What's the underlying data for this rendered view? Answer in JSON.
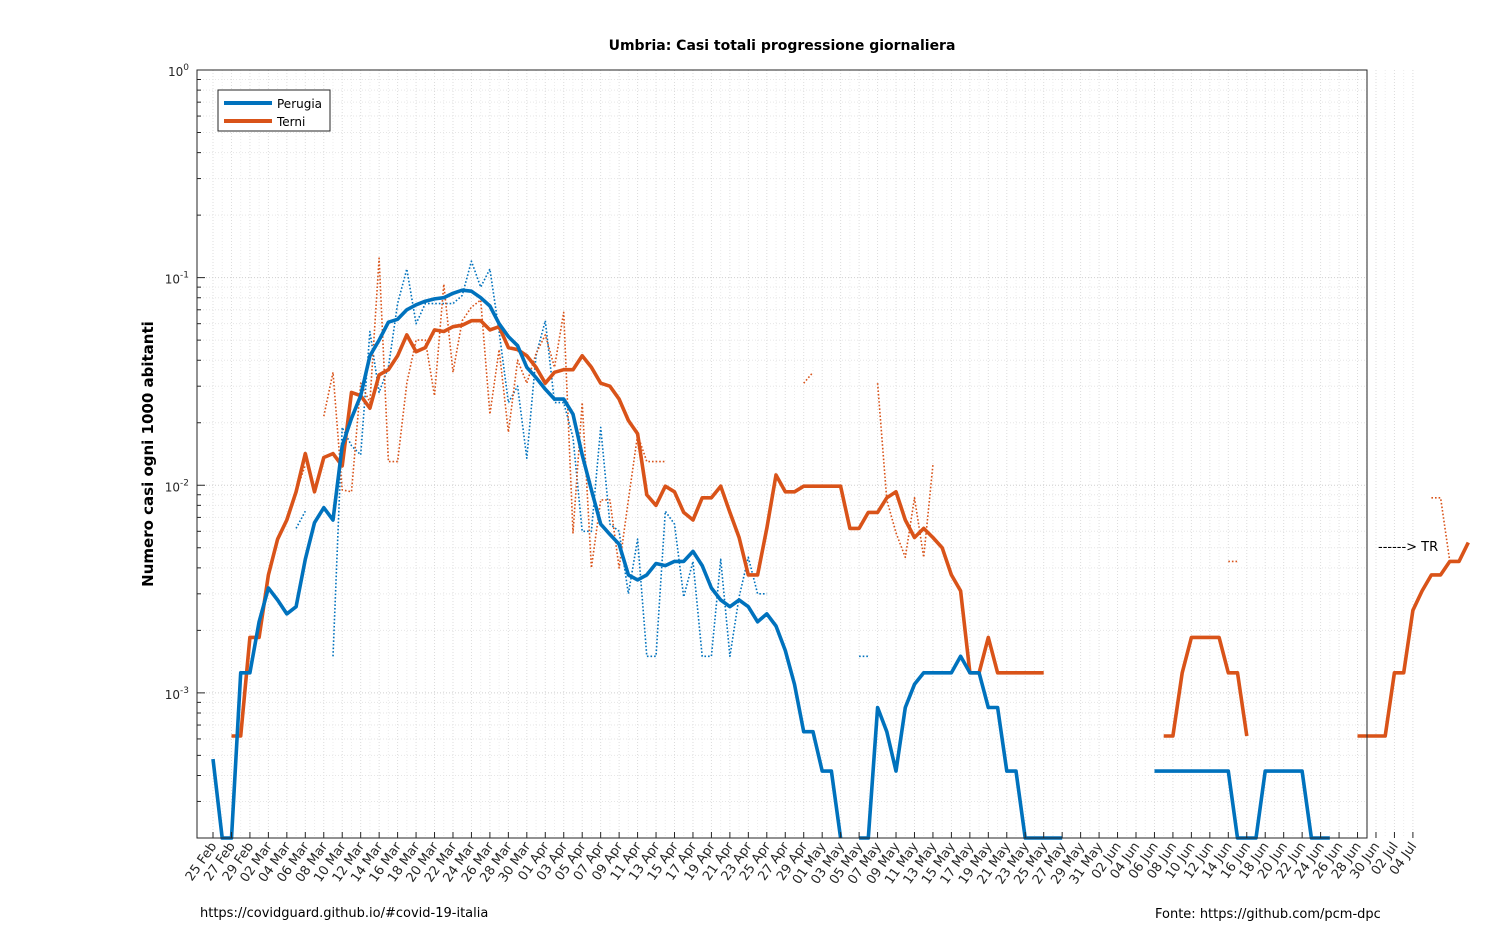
{
  "footer": {
    "left": "https://covidguard.github.io/#covid-19-italia",
    "right": "Fonte: https://github.com/pcm-dpc"
  },
  "annotation": "------> TR",
  "chart_data": {
    "type": "line",
    "title": "Umbria: Casi totali progressione giornaliera",
    "xlabel": "",
    "ylabel": "Numero casi ogni 1000 abitanti",
    "yscale": "log",
    "ylim": [
      0.0002,
      1
    ],
    "y_ticks": [
      {
        "value": 0.001,
        "base": "10",
        "exp": "-3"
      },
      {
        "value": 0.01,
        "base": "10",
        "exp": "-2"
      },
      {
        "value": 0.1,
        "base": "10",
        "exp": "-1"
      },
      {
        "value": 1,
        "base": "10",
        "exp": "0"
      }
    ],
    "grid": true,
    "legend_position": "top-left",
    "x_tick_labels": [
      "25 Feb",
      "27 Feb",
      "29 Feb",
      "02 Mar",
      "04 Mar",
      "06 Mar",
      "08 Mar",
      "10 Mar",
      "12 Mar",
      "14 Mar",
      "16 Mar",
      "18 Mar",
      "20 Mar",
      "22 Mar",
      "24 Mar",
      "26 Mar",
      "28 Mar",
      "30 Mar",
      "01 Apr",
      "03 Apr",
      "05 Apr",
      "07 Apr",
      "09 Apr",
      "11 Apr",
      "13 Apr",
      "15 Apr",
      "17 Apr",
      "19 Apr",
      "21 Apr",
      "23 Apr",
      "25 Apr",
      "27 Apr",
      "29 Apr",
      "01 May",
      "03 May",
      "05 May",
      "07 May",
      "09 May",
      "11 May",
      "13 May",
      "15 May",
      "17 May",
      "19 May",
      "21 May",
      "23 May",
      "25 May",
      "27 May",
      "29 May",
      "31 May",
      "02 Jun",
      "04 Jun",
      "06 Jun",
      "08 Jun",
      "10 Jun",
      "12 Jun",
      "14 Jun",
      "16 Jun",
      "18 Jun",
      "20 Jun",
      "22 Jun",
      "24 Jun",
      "26 Jun",
      "28 Jun",
      "30 Jun",
      "02 Jul",
      "04 Jul"
    ],
    "series": [
      {
        "name": "Perugia",
        "color": "#0072bd",
        "style": "solid",
        "values": [
          0.00048,
          0.0002,
          0.0002,
          0.00125,
          0.00125,
          0.0022,
          0.0032,
          0.0028,
          0.0024,
          0.0026,
          0.0044,
          0.0066,
          0.0078,
          0.0068,
          0.0155,
          0.021,
          0.027,
          0.042,
          0.05,
          0.061,
          0.063,
          0.07,
          0.074,
          0.077,
          0.079,
          0.08,
          0.084,
          0.087,
          0.086,
          0.08,
          0.073,
          0.06,
          0.052,
          0.047,
          0.037,
          0.033,
          0.029,
          0.026,
          0.026,
          0.022,
          0.014,
          0.0095,
          0.0065,
          0.0058,
          0.0052,
          0.0037,
          0.0035,
          0.0037,
          0.0042,
          0.0041,
          0.0043,
          0.0043,
          0.0048,
          0.0041,
          0.0032,
          0.0028,
          0.0026,
          0.0028,
          0.0026,
          0.0022,
          0.0024,
          0.0021,
          0.0016,
          0.0011,
          0.00065,
          0.00065,
          0.00042,
          0.00042,
          0.0002,
          null,
          0.0002,
          0.0002,
          0.00085,
          0.00065,
          0.00042,
          0.00085,
          0.0011,
          0.00125,
          0.00125,
          0.00125,
          0.00125,
          0.0015,
          0.00125,
          0.00125,
          0.00085,
          0.00085,
          0.00042,
          0.00042,
          0.0002,
          0.0002,
          0.0002,
          0.0002,
          0.0002,
          null,
          null,
          null,
          null,
          null,
          null,
          null,
          null,
          null,
          0.00042,
          0.00042,
          0.00042,
          0.00042,
          0.00042,
          0.00042,
          0.00042,
          0.00042,
          0.00042,
          0.0002,
          0.0002,
          0.0002,
          0.00042,
          0.00042,
          0.00042,
          0.00042,
          0.00042,
          0.0002,
          0.0002,
          0.0002
        ]
      },
      {
        "name": "Terni",
        "color": "#d95319",
        "style": "solid",
        "values": [
          null,
          null,
          0.00062,
          0.00062,
          0.00185,
          0.00185,
          0.0037,
          0.0055,
          0.0068,
          0.0093,
          0.0142,
          0.0093,
          0.0136,
          0.0142,
          0.0124,
          0.028,
          0.027,
          0.0235,
          0.034,
          0.036,
          0.042,
          0.053,
          0.044,
          0.046,
          0.056,
          0.055,
          0.058,
          0.059,
          0.062,
          0.062,
          0.056,
          0.058,
          0.046,
          0.045,
          0.042,
          0.037,
          0.031,
          0.035,
          0.036,
          0.036,
          0.042,
          0.037,
          0.031,
          0.03,
          0.026,
          0.0205,
          0.0177,
          0.009,
          0.008,
          0.0099,
          0.0093,
          0.0074,
          0.0068,
          0.0087,
          0.0087,
          0.0099,
          0.0074,
          0.0056,
          0.0037,
          0.0037,
          0.0062,
          0.0112,
          0.0093,
          0.0093,
          0.0099,
          0.0099,
          0.0099,
          0.0099,
          0.0099,
          0.0062,
          0.0062,
          0.0074,
          0.0074,
          0.0087,
          0.0093,
          0.0068,
          0.0056,
          0.0062,
          0.0056,
          0.005,
          0.0037,
          0.0031,
          0.00125,
          0.00125,
          0.00185,
          0.00125,
          0.00125,
          0.00125,
          0.00125,
          0.00125,
          0.00125,
          null,
          null,
          null,
          null,
          null,
          null,
          null,
          null,
          null,
          null,
          null,
          null,
          0.00062,
          0.00062,
          0.00125,
          0.00185,
          0.00185,
          0.00185,
          0.00185,
          0.00125,
          0.00125,
          0.00062,
          null,
          null,
          null,
          null,
          null,
          null,
          null,
          null,
          null,
          null,
          null,
          0.00062,
          0.00062,
          0.00062,
          0.00062,
          0.00125,
          0.00125,
          0.0025,
          0.0031,
          0.0037,
          0.0037,
          0.0043,
          0.0043,
          0.0053
        ]
      },
      {
        "name": "",
        "color": "#0072bd",
        "style": "dotted",
        "values": [
          null,
          null,
          null,
          null,
          null,
          null,
          null,
          null,
          null,
          0.0062,
          0.0075,
          null,
          null,
          0.0015,
          0.019,
          0.0155,
          0.014,
          0.055,
          0.028,
          0.037,
          0.075,
          0.11,
          0.06,
          0.075,
          0.075,
          0.075,
          0.075,
          0.082,
          0.12,
          0.09,
          0.11,
          0.055,
          0.025,
          0.03,
          0.0135,
          0.042,
          0.062,
          0.025,
          0.025,
          0.017,
          0.006,
          0.006,
          0.019,
          0.0065,
          0.006,
          0.003,
          0.0055,
          0.0015,
          0.0015,
          0.0075,
          0.0065,
          0.0029,
          0.0043,
          0.0015,
          0.0015,
          0.0044,
          0.0015,
          0.0029,
          0.0045,
          0.003,
          0.003,
          null,
          null,
          0.003,
          null,
          null,
          null,
          null,
          null,
          null,
          0.0015,
          0.0015,
          null,
          null,
          null,
          null,
          null,
          null,
          null,
          null,
          null,
          null,
          null,
          null,
          null,
          null,
          null,
          null,
          null,
          null,
          null,
          null,
          null,
          null,
          null,
          null,
          null,
          null,
          null,
          null,
          null,
          null,
          null,
          null,
          null,
          null,
          null,
          null,
          null,
          null,
          null,
          null,
          null,
          null,
          null,
          null,
          null,
          null,
          null,
          null,
          null,
          null,
          null,
          null,
          null
        ]
      },
      {
        "name": "",
        "color": "#d95319",
        "style": "dotted",
        "values": [
          null,
          null,
          null,
          null,
          null,
          null,
          null,
          null,
          null,
          0.0093,
          0.0125,
          null,
          0.0215,
          0.035,
          0.0095,
          0.0093,
          0.031,
          0.025,
          0.124,
          0.013,
          0.013,
          0.031,
          0.05,
          0.05,
          0.027,
          0.093,
          0.035,
          0.062,
          0.072,
          0.078,
          0.022,
          0.045,
          0.018,
          0.04,
          0.031,
          0.043,
          0.053,
          0.037,
          0.068,
          0.0059,
          0.025,
          0.004,
          0.0085,
          0.0085,
          0.004,
          0.0085,
          0.0175,
          0.013,
          0.013,
          0.013,
          null,
          null,
          0.0043,
          null,
          null,
          null,
          null,
          null,
          null,
          null,
          null,
          null,
          null,
          null,
          0.031,
          0.035,
          null,
          null,
          null,
          null,
          null,
          null,
          0.031,
          0.0085,
          0.0059,
          0.0045,
          0.0087,
          0.0045,
          0.0125,
          null,
          null,
          null,
          null,
          null,
          null,
          null,
          null,
          null,
          null,
          null,
          null,
          null,
          null,
          null,
          null,
          null,
          null,
          null,
          null,
          null,
          null,
          null,
          null,
          null,
          null,
          null,
          null,
          null,
          null,
          null,
          0.0043,
          0.0043,
          null,
          null,
          null,
          null,
          null,
          null,
          null,
          null,
          null,
          null,
          null,
          null,
          null,
          null,
          null,
          null,
          null,
          null,
          null,
          null,
          0.0087,
          0.0087,
          0.0043
        ]
      }
    ]
  }
}
